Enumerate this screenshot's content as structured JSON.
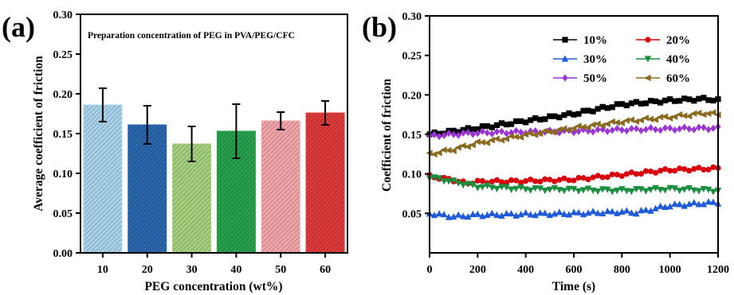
{
  "chart_data": [
    {
      "panel_label": "(a)",
      "type": "bar",
      "annotation": "Preparation concentration of PEG in PVA/PEG/CFC",
      "xlabel": "PEG concentration (wt%)",
      "ylabel": "Average coefficient of friction",
      "ylim": [
        0,
        0.3
      ],
      "yticks": [
        "0.00",
        "0.05",
        "0.10",
        "0.15",
        "0.20",
        "0.25",
        "0.30"
      ],
      "categories": [
        "10",
        "20",
        "30",
        "40",
        "50",
        "60"
      ],
      "values": [
        0.186,
        0.161,
        0.137,
        0.153,
        0.166,
        0.176
      ],
      "errors": [
        0.021,
        0.024,
        0.022,
        0.034,
        0.011,
        0.015
      ],
      "colors": [
        "#a9d3ec",
        "#2b67ad",
        "#a5d17e",
        "#27a14b",
        "#f1a5ab",
        "#de3a3a"
      ],
      "grid": false
    },
    {
      "panel_label": "(b)",
      "type": "line",
      "xlabel": "Time (s)",
      "ylabel": "Coefficient of friction",
      "xlim": [
        0,
        1200
      ],
      "ylim": [
        0.0,
        0.3
      ],
      "xticks": [
        "0",
        "200",
        "400",
        "600",
        "800",
        "1000",
        "1200"
      ],
      "yticks": [
        "0.05",
        "0.10",
        "0.15",
        "0.20",
        "0.25",
        "0.30"
      ],
      "legend_position": "top-right",
      "grid": false,
      "series": [
        {
          "name": "10%",
          "color": "#000000",
          "marker": "square",
          "anchors_x": [
            0,
            200,
            400,
            600,
            800,
            1000,
            1150,
            1200
          ],
          "anchors_y": [
            0.15,
            0.158,
            0.167,
            0.176,
            0.188,
            0.193,
            0.195,
            0.193
          ]
        },
        {
          "name": "20%",
          "color": "#d9000e",
          "marker": "circle",
          "anchors_x": [
            0,
            100,
            150,
            200,
            400,
            600,
            800,
            1000,
            1200
          ],
          "anchors_y": [
            0.097,
            0.092,
            0.088,
            0.09,
            0.091,
            0.093,
            0.099,
            0.105,
            0.107
          ]
        },
        {
          "name": "30%",
          "color": "#1f5bd8",
          "marker": "triangle-up",
          "anchors_x": [
            0,
            100,
            200,
            400,
            600,
            800,
            860,
            1000,
            1200
          ],
          "anchors_y": [
            0.05,
            0.046,
            0.048,
            0.049,
            0.05,
            0.052,
            0.051,
            0.06,
            0.064
          ]
        },
        {
          "name": "40%",
          "color": "#1a8e3e",
          "marker": "triangle-down",
          "anchors_x": [
            0,
            100,
            200,
            400,
            600,
            800,
            1000,
            1200
          ],
          "anchors_y": [
            0.096,
            0.09,
            0.084,
            0.081,
            0.08,
            0.079,
            0.081,
            0.079
          ]
        },
        {
          "name": "50%",
          "color": "#9a35d4",
          "marker": "diamond",
          "anchors_x": [
            0,
            100,
            200,
            400,
            600,
            800,
            1000,
            1200
          ],
          "anchors_y": [
            0.148,
            0.15,
            0.152,
            0.153,
            0.154,
            0.156,
            0.157,
            0.158
          ]
        },
        {
          "name": "60%",
          "color": "#8b6b21",
          "marker": "triangle-left",
          "anchors_x": [
            0,
            100,
            200,
            400,
            600,
            800,
            1000,
            1150,
            1200
          ],
          "anchors_y": [
            0.125,
            0.131,
            0.139,
            0.149,
            0.158,
            0.166,
            0.172,
            0.177,
            0.175
          ]
        }
      ]
    }
  ]
}
